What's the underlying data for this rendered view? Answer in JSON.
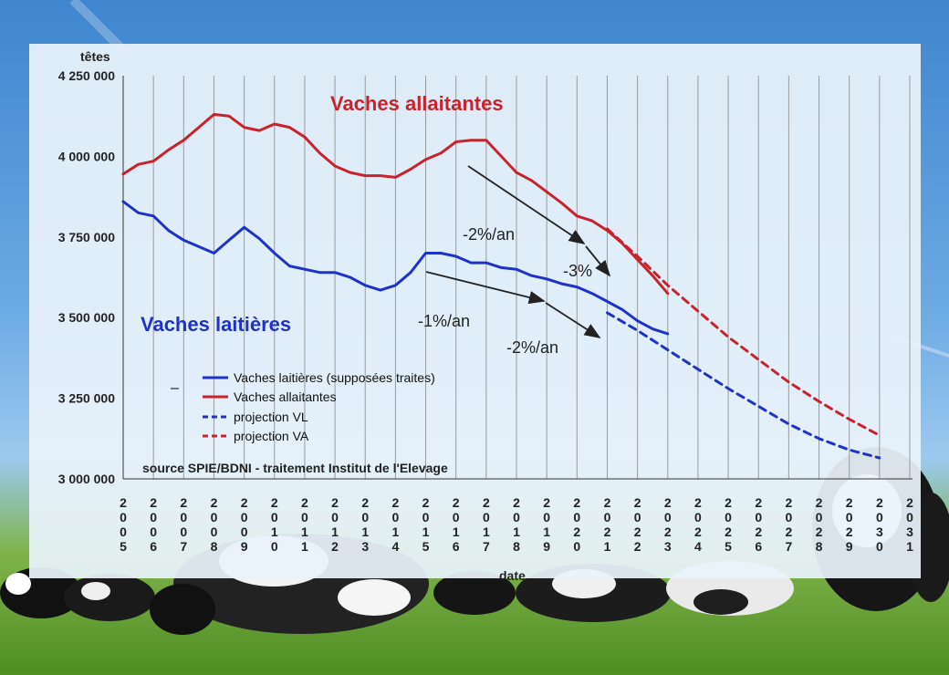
{
  "chart_data": {
    "type": "line",
    "ylabel": "têtes",
    "xlabel": "date",
    "ylim": [
      3000000,
      4250000
    ],
    "yticks": [
      "3 000 000",
      "3 250 000",
      "3 500 000",
      "3 750 000",
      "4 000 000",
      "4 250 000"
    ],
    "ytick_values": [
      3000000,
      3250000,
      3500000,
      3750000,
      4000000,
      4250000
    ],
    "xlim": [
      2005,
      2031
    ],
    "xticks": [
      "2005",
      "2006",
      "2007",
      "2008",
      "2009",
      "2010",
      "2011",
      "2012",
      "2013",
      "2014",
      "2015",
      "2016",
      "2017",
      "2018",
      "2019",
      "2020",
      "2021",
      "2022",
      "2023",
      "2024",
      "2025",
      "2026",
      "2027",
      "2028",
      "2029",
      "2030",
      "2031"
    ],
    "grid": "vertical",
    "legend_position": "bottom-left",
    "series": [
      {
        "name": "Vaches laitières (supposées traites)",
        "color": "#1f32c8",
        "style": "solid",
        "x": [
          2005.0,
          2005.5,
          2006.0,
          2006.5,
          2007.0,
          2007.5,
          2008.0,
          2008.5,
          2009.0,
          2009.5,
          2010.0,
          2010.5,
          2011.0,
          2011.5,
          2012.0,
          2012.5,
          2013.0,
          2013.5,
          2014.0,
          2014.5,
          2015.0,
          2015.5,
          2016.0,
          2016.5,
          2017.0,
          2017.5,
          2018.0,
          2018.5,
          2019.0,
          2019.5,
          2020.0,
          2020.5,
          2021.0,
          2021.5,
          2022.0,
          2022.5,
          2023.0
        ],
        "values": [
          3860000,
          3825000,
          3815000,
          3770000,
          3740000,
          3720000,
          3700000,
          3740000,
          3780000,
          3745000,
          3700000,
          3660000,
          3650000,
          3640000,
          3640000,
          3625000,
          3600000,
          3585000,
          3600000,
          3640000,
          3700000,
          3700000,
          3690000,
          3670000,
          3670000,
          3655000,
          3650000,
          3630000,
          3620000,
          3605000,
          3595000,
          3575000,
          3550000,
          3525000,
          3490000,
          3465000,
          3450000
        ]
      },
      {
        "name": "Vaches allaitantes",
        "color": "#c8232c",
        "style": "solid",
        "x": [
          2005.0,
          2005.5,
          2006.0,
          2006.5,
          2007.0,
          2007.5,
          2008.0,
          2008.5,
          2009.0,
          2009.5,
          2010.0,
          2010.5,
          2011.0,
          2011.5,
          2012.0,
          2012.5,
          2013.0,
          2013.5,
          2014.0,
          2014.5,
          2015.0,
          2015.5,
          2016.0,
          2016.5,
          2017.0,
          2017.5,
          2018.0,
          2018.5,
          2019.0,
          2019.5,
          2020.0,
          2020.5,
          2021.0,
          2021.5,
          2022.0,
          2022.5,
          2023.0
        ],
        "values": [
          3945000,
          3975000,
          3985000,
          4020000,
          4050000,
          4090000,
          4130000,
          4125000,
          4090000,
          4080000,
          4100000,
          4090000,
          4060000,
          4010000,
          3970000,
          3950000,
          3940000,
          3940000,
          3935000,
          3960000,
          3990000,
          4010000,
          4045000,
          4050000,
          4050000,
          4000000,
          3950000,
          3925000,
          3890000,
          3855000,
          3815000,
          3800000,
          3770000,
          3730000,
          3680000,
          3630000,
          3575000
        ]
      },
      {
        "name": "projection VL",
        "color": "#1f32c8",
        "style": "dashed",
        "x": [
          2021,
          2022,
          2023,
          2024,
          2025,
          2026,
          2027,
          2028,
          2029,
          2030
        ],
        "values": [
          3515000,
          3460000,
          3400000,
          3340000,
          3280000,
          3225000,
          3170000,
          3125000,
          3090000,
          3065000
        ]
      },
      {
        "name": "projection VA",
        "color": "#c8232c",
        "style": "dashed",
        "x": [
          2021,
          2022,
          2023,
          2024,
          2025,
          2026,
          2027,
          2028,
          2029,
          2030
        ],
        "values": [
          3775000,
          3690000,
          3600000,
          3520000,
          3440000,
          3370000,
          3300000,
          3240000,
          3185000,
          3135000
        ]
      }
    ],
    "annotations": {
      "va_label": "Vaches allaitantes",
      "vl_label": "Vaches laitières",
      "va_rate1": "-2%/an",
      "va_rate2": "-3%",
      "vl_rate1": "-1%/an",
      "vl_rate2": "-2%/an",
      "source": "source SPIE/BDNI - traitement Institut de l'Elevage",
      "legend_dash": "–"
    }
  }
}
